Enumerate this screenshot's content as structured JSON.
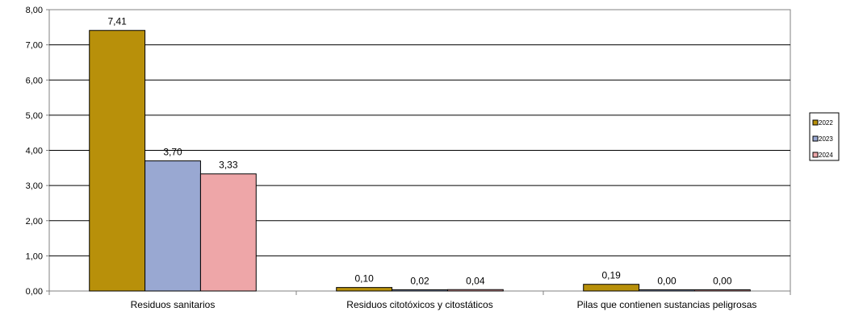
{
  "chart_data": {
    "type": "bar",
    "categories": [
      "Residuos sanitarios",
      "Residuos citotóxicos y citostáticos",
      "Pilas que contienen sustancias peligrosas"
    ],
    "series": [
      {
        "name": "2022",
        "values": [
          7.41,
          0.1,
          0.19
        ],
        "labels": [
          "7,41",
          "0,10",
          "0,19"
        ],
        "color": "#B8900A"
      },
      {
        "name": "2023",
        "values": [
          3.7,
          0.02,
          0.0
        ],
        "labels": [
          "3,70",
          "0,02",
          "0,00"
        ],
        "color": "#99A8D2"
      },
      {
        "name": "2024",
        "values": [
          3.33,
          0.04,
          0.0
        ],
        "labels": [
          "3,33",
          "0,04",
          "0,00"
        ],
        "color": "#EEA6A8"
      }
    ],
    "yticks": [
      "0,00",
      "1,00",
      "2,00",
      "3,00",
      "4,00",
      "5,00",
      "6,00",
      "7,00",
      "8,00"
    ],
    "ylim": [
      0,
      8
    ],
    "grid": true,
    "legend": "right"
  }
}
